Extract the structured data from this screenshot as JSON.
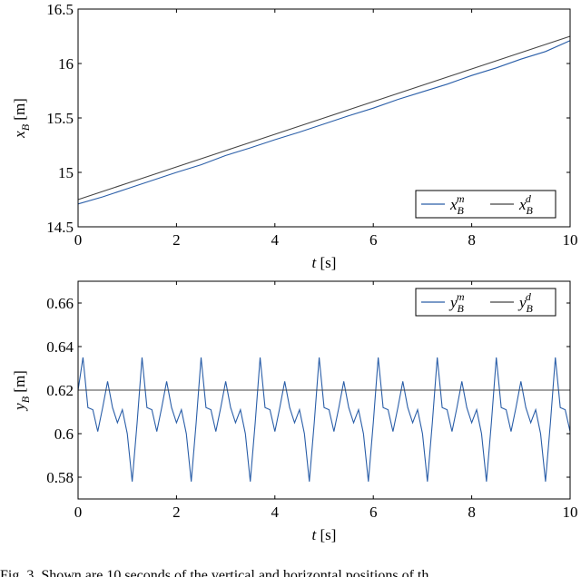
{
  "chart_data": [
    {
      "type": "line",
      "xlabel": "t [s]",
      "ylabel": "x_B [m]",
      "xlim": [
        0,
        10
      ],
      "xticks": [
        0,
        2,
        4,
        6,
        8,
        10
      ],
      "ylim": [
        14.5,
        16.5
      ],
      "yticks": [
        14.5,
        15,
        15.5,
        16,
        16.5
      ],
      "legend": "lower right",
      "x": [
        0,
        0.5,
        1,
        1.5,
        2,
        2.5,
        3,
        3.5,
        4,
        4.5,
        5,
        5.5,
        6,
        6.5,
        7,
        7.5,
        8,
        8.5,
        9,
        9.5,
        10
      ],
      "series": [
        {
          "name": "x_B^m",
          "color": "#2a5ea8",
          "values": [
            14.71,
            14.775,
            14.85,
            14.925,
            15.0,
            15.07,
            15.155,
            15.225,
            15.3,
            15.37,
            15.445,
            15.52,
            15.59,
            15.67,
            15.74,
            15.81,
            15.89,
            15.96,
            16.04,
            16.11,
            16.21
          ]
        },
        {
          "name": "x_B^d",
          "color": "#444444",
          "values": [
            14.75,
            14.825,
            14.9,
            14.975,
            15.05,
            15.125,
            15.2,
            15.275,
            15.35,
            15.425,
            15.5,
            15.575,
            15.65,
            15.725,
            15.8,
            15.875,
            15.95,
            16.025,
            16.1,
            16.175,
            16.25
          ]
        }
      ]
    },
    {
      "type": "line",
      "xlabel": "t [s]",
      "ylabel": "y_B [m]",
      "xlim": [
        0,
        10
      ],
      "xticks": [
        0,
        2,
        4,
        6,
        8,
        10
      ],
      "ylim": [
        0.57,
        0.67
      ],
      "yticks": [
        0.58,
        0.6,
        0.62,
        0.64,
        0.66
      ],
      "legend": "upper right",
      "x": [
        0,
        0.1,
        0.2,
        0.3,
        0.4,
        0.5,
        0.6,
        0.7,
        0.8,
        0.9,
        1,
        1.1,
        1.2,
        1.3,
        1.4,
        1.5,
        1.6,
        1.7,
        1.8,
        1.9,
        2,
        2.1,
        2.2,
        2.3,
        2.4,
        2.5,
        2.6,
        2.7,
        2.8,
        2.9,
        3,
        3.1,
        3.2,
        3.3,
        3.4,
        3.5,
        3.6,
        3.7,
        3.8,
        3.9,
        4,
        4.1,
        4.2,
        4.3,
        4.4,
        4.5,
        4.6,
        4.7,
        4.8,
        4.9,
        5,
        5.1,
        5.2,
        5.3,
        5.4,
        5.5,
        5.6,
        5.7,
        5.8,
        5.9,
        6,
        6.1,
        6.2,
        6.3,
        6.4,
        6.5,
        6.6,
        6.7,
        6.8,
        6.9,
        7,
        7.1,
        7.2,
        7.3,
        7.4,
        7.5,
        7.6,
        7.7,
        7.8,
        7.9,
        8,
        8.1,
        8.2,
        8.3,
        8.4,
        8.5,
        8.6,
        8.7,
        8.8,
        8.9,
        9,
        9.1,
        9.2,
        9.3,
        9.4,
        9.5,
        9.6,
        9.7,
        9.8,
        9.9,
        10
      ],
      "series": [
        {
          "name": "y_B^m",
          "color": "#2a5ea8",
          "values": [
            0.62,
            0.635,
            0.612,
            0.611,
            0.601,
            0.612,
            0.624,
            0.612,
            0.605,
            0.611,
            0.6,
            0.578,
            0.605,
            0.635,
            0.612,
            0.611,
            0.601,
            0.612,
            0.624,
            0.612,
            0.605,
            0.611,
            0.6,
            0.578,
            0.605,
            0.635,
            0.612,
            0.611,
            0.601,
            0.612,
            0.624,
            0.612,
            0.605,
            0.611,
            0.6,
            0.578,
            0.605,
            0.635,
            0.612,
            0.611,
            0.601,
            0.612,
            0.624,
            0.612,
            0.605,
            0.611,
            0.6,
            0.578,
            0.605,
            0.635,
            0.612,
            0.611,
            0.601,
            0.612,
            0.624,
            0.612,
            0.605,
            0.611,
            0.6,
            0.578,
            0.605,
            0.635,
            0.612,
            0.611,
            0.601,
            0.612,
            0.624,
            0.612,
            0.605,
            0.611,
            0.6,
            0.578,
            0.605,
            0.635,
            0.612,
            0.611,
            0.601,
            0.612,
            0.624,
            0.612,
            0.605,
            0.611,
            0.6,
            0.578,
            0.605,
            0.635,
            0.612,
            0.611,
            0.601,
            0.612,
            0.624,
            0.612,
            0.605,
            0.611,
            0.6,
            0.578,
            0.605,
            0.635,
            0.612,
            0.611,
            0.601
          ]
        },
        {
          "name": "y_B^d",
          "color": "#444444",
          "values": [
            0.62,
            0.62,
            0.62,
            0.62,
            0.62,
            0.62,
            0.62,
            0.62,
            0.62,
            0.62,
            0.62,
            0.62,
            0.62,
            0.62,
            0.62,
            0.62,
            0.62,
            0.62,
            0.62,
            0.62,
            0.62,
            0.62,
            0.62,
            0.62,
            0.62,
            0.62,
            0.62,
            0.62,
            0.62,
            0.62,
            0.62,
            0.62,
            0.62,
            0.62,
            0.62,
            0.62,
            0.62,
            0.62,
            0.62,
            0.62,
            0.62,
            0.62,
            0.62,
            0.62,
            0.62,
            0.62,
            0.62,
            0.62,
            0.62,
            0.62,
            0.62,
            0.62,
            0.62,
            0.62,
            0.62,
            0.62,
            0.62,
            0.62,
            0.62,
            0.62,
            0.62,
            0.62,
            0.62,
            0.62,
            0.62,
            0.62,
            0.62,
            0.62,
            0.62,
            0.62,
            0.62,
            0.62,
            0.62,
            0.62,
            0.62,
            0.62,
            0.62,
            0.62,
            0.62,
            0.62,
            0.62,
            0.62,
            0.62,
            0.62,
            0.62,
            0.62,
            0.62,
            0.62,
            0.62,
            0.62,
            0.62,
            0.62,
            0.62,
            0.62,
            0.62,
            0.62,
            0.62,
            0.62,
            0.62,
            0.62,
            0.62
          ]
        }
      ]
    }
  ],
  "caption": "Fig. 3. Shown are 10 seconds of the vertical and horizontal positions of th"
}
